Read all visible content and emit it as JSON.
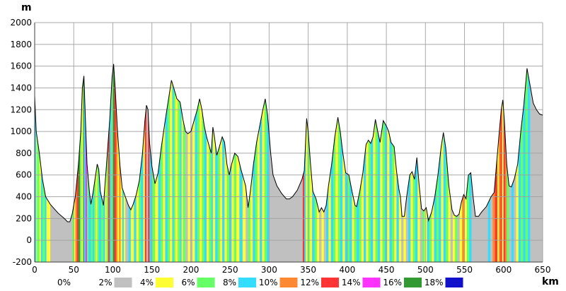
{
  "chart_data": {
    "type": "area",
    "title": "",
    "xlabel": "km",
    "ylabel": "m",
    "xlim": [
      0,
      650
    ],
    "ylim": [
      -200,
      2000
    ],
    "x_ticks": [
      0,
      50,
      100,
      150,
      200,
      250,
      300,
      350,
      400,
      450,
      500,
      550,
      600,
      650
    ],
    "y_ticks": [
      -200,
      0,
      200,
      400,
      600,
      800,
      1000,
      1200,
      1400,
      1600,
      1800,
      2000
    ],
    "grid": true,
    "legend_position": "bottom",
    "legend": [
      {
        "label": "0%",
        "color": "#ffffff"
      },
      {
        "label": "2%",
        "color": "#c0c0c0"
      },
      {
        "label": "4%",
        "color": "#ffff33"
      },
      {
        "label": "6%",
        "color": "#66ff66"
      },
      {
        "label": "8%",
        "color": "#33ddff"
      },
      {
        "label": "10%",
        "color": "#ff8833"
      },
      {
        "label": "12%",
        "color": "#ff3333"
      },
      {
        "label": "14%",
        "color": "#ff33ff"
      },
      {
        "label": "16%",
        "color": "#339933"
      },
      {
        "label": "18%",
        "color": "#1111cc"
      }
    ],
    "profile": [
      [
        0,
        1330
      ],
      [
        2,
        1000
      ],
      [
        6,
        800
      ],
      [
        10,
        560
      ],
      [
        14,
        400
      ],
      [
        20,
        330
      ],
      [
        30,
        250
      ],
      [
        38,
        200
      ],
      [
        42,
        170
      ],
      [
        45,
        170
      ],
      [
        48,
        240
      ],
      [
        52,
        400
      ],
      [
        56,
        700
      ],
      [
        59,
        1000
      ],
      [
        61,
        1400
      ],
      [
        63,
        1510
      ],
      [
        65,
        1100
      ],
      [
        67,
        700
      ],
      [
        70,
        450
      ],
      [
        72,
        330
      ],
      [
        75,
        450
      ],
      [
        78,
        600
      ],
      [
        80,
        700
      ],
      [
        82,
        650
      ],
      [
        84,
        450
      ],
      [
        88,
        320
      ],
      [
        92,
        700
      ],
      [
        96,
        1100
      ],
      [
        99,
        1500
      ],
      [
        101,
        1620
      ],
      [
        103,
        1400
      ],
      [
        106,
        1000
      ],
      [
        109,
        700
      ],
      [
        112,
        480
      ],
      [
        116,
        400
      ],
      [
        120,
        320
      ],
      [
        123,
        280
      ],
      [
        126,
        330
      ],
      [
        130,
        420
      ],
      [
        134,
        550
      ],
      [
        138,
        800
      ],
      [
        141,
        1100
      ],
      [
        143,
        1240
      ],
      [
        145,
        1200
      ],
      [
        147,
        900
      ],
      [
        150,
        680
      ],
      [
        154,
        520
      ],
      [
        158,
        620
      ],
      [
        162,
        850
      ],
      [
        167,
        1100
      ],
      [
        172,
        1330
      ],
      [
        175,
        1470
      ],
      [
        178,
        1400
      ],
      [
        182,
        1300
      ],
      [
        186,
        1270
      ],
      [
        190,
        1100
      ],
      [
        193,
        1000
      ],
      [
        196,
        980
      ],
      [
        200,
        1000
      ],
      [
        204,
        1100
      ],
      [
        208,
        1200
      ],
      [
        211,
        1300
      ],
      [
        214,
        1200
      ],
      [
        217,
        1050
      ],
      [
        220,
        950
      ],
      [
        224,
        850
      ],
      [
        226,
        800
      ],
      [
        228,
        1040
      ],
      [
        230,
        950
      ],
      [
        233,
        780
      ],
      [
        236,
        850
      ],
      [
        240,
        950
      ],
      [
        243,
        900
      ],
      [
        246,
        700
      ],
      [
        249,
        600
      ],
      [
        252,
        700
      ],
      [
        256,
        800
      ],
      [
        260,
        770
      ],
      [
        264,
        650
      ],
      [
        268,
        550
      ],
      [
        270,
        500
      ],
      [
        273,
        300
      ],
      [
        276,
        450
      ],
      [
        280,
        700
      ],
      [
        284,
        900
      ],
      [
        288,
        1050
      ],
      [
        292,
        1200
      ],
      [
        295,
        1300
      ],
      [
        298,
        1150
      ],
      [
        302,
        800
      ],
      [
        305,
        600
      ],
      [
        310,
        500
      ],
      [
        316,
        430
      ],
      [
        322,
        380
      ],
      [
        326,
        380
      ],
      [
        330,
        400
      ],
      [
        336,
        460
      ],
      [
        342,
        560
      ],
      [
        345,
        640
      ],
      [
        348,
        1120
      ],
      [
        350,
        1000
      ],
      [
        353,
        700
      ],
      [
        356,
        450
      ],
      [
        360,
        380
      ],
      [
        364,
        260
      ],
      [
        367,
        300
      ],
      [
        370,
        260
      ],
      [
        373,
        320
      ],
      [
        376,
        500
      ],
      [
        380,
        700
      ],
      [
        384,
        950
      ],
      [
        388,
        1130
      ],
      [
        391,
        1000
      ],
      [
        394,
        820
      ],
      [
        398,
        620
      ],
      [
        402,
        600
      ],
      [
        406,
        450
      ],
      [
        410,
        320
      ],
      [
        412,
        310
      ],
      [
        416,
        450
      ],
      [
        420,
        620
      ],
      [
        424,
        880
      ],
      [
        427,
        920
      ],
      [
        430,
        890
      ],
      [
        433,
        950
      ],
      [
        436,
        1110
      ],
      [
        439,
        1000
      ],
      [
        442,
        900
      ],
      [
        446,
        1100
      ],
      [
        450,
        1050
      ],
      [
        453,
        1000
      ],
      [
        456,
        900
      ],
      [
        460,
        860
      ],
      [
        463,
        640
      ],
      [
        466,
        470
      ],
      [
        468,
        400
      ],
      [
        470,
        220
      ],
      [
        473,
        220
      ],
      [
        476,
        400
      ],
      [
        480,
        600
      ],
      [
        483,
        630
      ],
      [
        486,
        560
      ],
      [
        489,
        760
      ],
      [
        492,
        500
      ],
      [
        495,
        290
      ],
      [
        498,
        270
      ],
      [
        501,
        300
      ],
      [
        504,
        180
      ],
      [
        508,
        260
      ],
      [
        512,
        400
      ],
      [
        516,
        600
      ],
      [
        520,
        850
      ],
      [
        523,
        990
      ],
      [
        526,
        850
      ],
      [
        530,
        500
      ],
      [
        534,
        280
      ],
      [
        537,
        230
      ],
      [
        540,
        220
      ],
      [
        543,
        240
      ],
      [
        546,
        350
      ],
      [
        549,
        420
      ],
      [
        552,
        380
      ],
      [
        555,
        600
      ],
      [
        558,
        620
      ],
      [
        561,
        400
      ],
      [
        564,
        220
      ],
      [
        568,
        220
      ],
      [
        572,
        260
      ],
      [
        578,
        310
      ],
      [
        584,
        400
      ],
      [
        588,
        440
      ],
      [
        591,
        700
      ],
      [
        594,
        950
      ],
      [
        597,
        1200
      ],
      [
        599,
        1290
      ],
      [
        601,
        1100
      ],
      [
        604,
        700
      ],
      [
        607,
        500
      ],
      [
        610,
        490
      ],
      [
        614,
        570
      ],
      [
        618,
        700
      ],
      [
        622,
        1000
      ],
      [
        626,
        1250
      ],
      [
        630,
        1580
      ],
      [
        634,
        1420
      ],
      [
        638,
        1260
      ],
      [
        642,
        1200
      ],
      [
        646,
        1160
      ],
      [
        650,
        1150
      ]
    ],
    "grade_segments": [
      [
        0,
        2,
        8
      ],
      [
        2,
        3,
        4
      ],
      [
        3,
        6,
        6
      ],
      [
        6,
        8,
        4
      ],
      [
        8,
        10,
        8
      ],
      [
        10,
        13,
        6
      ],
      [
        13,
        15,
        8
      ],
      [
        15,
        20,
        4
      ],
      [
        20,
        45,
        2
      ],
      [
        45,
        48,
        2
      ],
      [
        48,
        50,
        6
      ],
      [
        50,
        52,
        4
      ],
      [
        52,
        54,
        10
      ],
      [
        54,
        56,
        12
      ],
      [
        56,
        58,
        16
      ],
      [
        58,
        60,
        6
      ],
      [
        60,
        62,
        4
      ],
      [
        62,
        63,
        16
      ],
      [
        63,
        65,
        8
      ],
      [
        65,
        67,
        14
      ],
      [
        67,
        69,
        6
      ],
      [
        69,
        72,
        8
      ],
      [
        72,
        74,
        6
      ],
      [
        74,
        76,
        8
      ],
      [
        76,
        78,
        6
      ],
      [
        78,
        80,
        4
      ],
      [
        80,
        82,
        6
      ],
      [
        82,
        85,
        8
      ],
      [
        85,
        88,
        6
      ],
      [
        88,
        90,
        8
      ],
      [
        90,
        92,
        4
      ],
      [
        92,
        94,
        6
      ],
      [
        94,
        96,
        12
      ],
      [
        96,
        98,
        8
      ],
      [
        98,
        100,
        6
      ],
      [
        100,
        102,
        16
      ],
      [
        102,
        104,
        12
      ],
      [
        104,
        106,
        10
      ],
      [
        106,
        108,
        4
      ],
      [
        108,
        110,
        10
      ],
      [
        110,
        112,
        4
      ],
      [
        112,
        114,
        8
      ],
      [
        114,
        116,
        4
      ],
      [
        116,
        120,
        2
      ],
      [
        120,
        123,
        8
      ],
      [
        123,
        127,
        4
      ],
      [
        127,
        130,
        8
      ],
      [
        130,
        133,
        4
      ],
      [
        133,
        136,
        6
      ],
      [
        136,
        139,
        8
      ],
      [
        139,
        141,
        4
      ],
      [
        141,
        143,
        12
      ],
      [
        143,
        145,
        2
      ],
      [
        145,
        147,
        12
      ],
      [
        147,
        150,
        8
      ],
      [
        150,
        154,
        6
      ],
      [
        154,
        158,
        4
      ],
      [
        158,
        161,
        8
      ],
      [
        161,
        164,
        6
      ],
      [
        164,
        167,
        4
      ],
      [
        167,
        170,
        8
      ],
      [
        170,
        173,
        6
      ],
      [
        173,
        176,
        4
      ],
      [
        176,
        178,
        8
      ],
      [
        178,
        180,
        6
      ],
      [
        180,
        183,
        4
      ],
      [
        183,
        186,
        6
      ],
      [
        186,
        188,
        8
      ],
      [
        188,
        190,
        4
      ],
      [
        190,
        193,
        6
      ],
      [
        193,
        196,
        2
      ],
      [
        196,
        199,
        4
      ],
      [
        199,
        202,
        2
      ],
      [
        202,
        205,
        4
      ],
      [
        205,
        208,
        8
      ],
      [
        208,
        211,
        6
      ],
      [
        211,
        214,
        4
      ],
      [
        214,
        217,
        6
      ],
      [
        217,
        220,
        8
      ],
      [
        220,
        223,
        4
      ],
      [
        223,
        226,
        6
      ],
      [
        226,
        228,
        8
      ],
      [
        228,
        231,
        4
      ],
      [
        231,
        234,
        8
      ],
      [
        234,
        237,
        6
      ],
      [
        237,
        240,
        4
      ],
      [
        240,
        243,
        8
      ],
      [
        243,
        246,
        4
      ],
      [
        246,
        249,
        6
      ],
      [
        249,
        252,
        8
      ],
      [
        252,
        255,
        4
      ],
      [
        255,
        258,
        6
      ],
      [
        258,
        262,
        4
      ],
      [
        262,
        266,
        8
      ],
      [
        266,
        270,
        4
      ],
      [
        270,
        273,
        2
      ],
      [
        273,
        276,
        6
      ],
      [
        276,
        279,
        4
      ],
      [
        279,
        282,
        8
      ],
      [
        282,
        285,
        6
      ],
      [
        285,
        288,
        4
      ],
      [
        288,
        291,
        8
      ],
      [
        291,
        294,
        4
      ],
      [
        294,
        297,
        6
      ],
      [
        297,
        300,
        8
      ],
      [
        300,
        343,
        2
      ],
      [
        343,
        345,
        12
      ],
      [
        345,
        347,
        8
      ],
      [
        347,
        349,
        4
      ],
      [
        349,
        352,
        6
      ],
      [
        352,
        355,
        4
      ],
      [
        355,
        358,
        8
      ],
      [
        358,
        361,
        6
      ],
      [
        361,
        364,
        4
      ],
      [
        364,
        367,
        2
      ],
      [
        367,
        370,
        4
      ],
      [
        370,
        373,
        2
      ],
      [
        373,
        376,
        8
      ],
      [
        376,
        379,
        4
      ],
      [
        379,
        382,
        8
      ],
      [
        382,
        385,
        6
      ],
      [
        385,
        388,
        4
      ],
      [
        388,
        391,
        6
      ],
      [
        391,
        394,
        8
      ],
      [
        394,
        397,
        4
      ],
      [
        397,
        400,
        8
      ],
      [
        400,
        403,
        6
      ],
      [
        403,
        406,
        8
      ],
      [
        406,
        409,
        4
      ],
      [
        409,
        412,
        6
      ],
      [
        412,
        415,
        8
      ],
      [
        415,
        418,
        6
      ],
      [
        418,
        421,
        4
      ],
      [
        421,
        424,
        8
      ],
      [
        424,
        427,
        4
      ],
      [
        427,
        430,
        6
      ],
      [
        430,
        433,
        8
      ],
      [
        433,
        436,
        4
      ],
      [
        436,
        439,
        6
      ],
      [
        439,
        442,
        8
      ],
      [
        442,
        445,
        4
      ],
      [
        445,
        448,
        6
      ],
      [
        448,
        451,
        8
      ],
      [
        451,
        454,
        4
      ],
      [
        454,
        457,
        8
      ],
      [
        457,
        460,
        6
      ],
      [
        460,
        463,
        4
      ],
      [
        463,
        466,
        8
      ],
      [
        466,
        469,
        4
      ],
      [
        469,
        472,
        2
      ],
      [
        472,
        475,
        4
      ],
      [
        475,
        478,
        2
      ],
      [
        478,
        481,
        8
      ],
      [
        481,
        484,
        4
      ],
      [
        484,
        487,
        6
      ],
      [
        487,
        490,
        8
      ],
      [
        490,
        493,
        4
      ],
      [
        493,
        496,
        2
      ],
      [
        496,
        499,
        6
      ],
      [
        499,
        502,
        4
      ],
      [
        502,
        505,
        8
      ],
      [
        505,
        508,
        6
      ],
      [
        508,
        511,
        4
      ],
      [
        511,
        514,
        8
      ],
      [
        514,
        517,
        6
      ],
      [
        517,
        520,
        8
      ],
      [
        520,
        523,
        4
      ],
      [
        523,
        526,
        8
      ],
      [
        526,
        529,
        6
      ],
      [
        529,
        532,
        4
      ],
      [
        532,
        535,
        2
      ],
      [
        535,
        538,
        4
      ],
      [
        538,
        541,
        6
      ],
      [
        541,
        544,
        2
      ],
      [
        544,
        547,
        4
      ],
      [
        547,
        550,
        10
      ],
      [
        550,
        553,
        4
      ],
      [
        553,
        556,
        6
      ],
      [
        556,
        559,
        8
      ],
      [
        559,
        562,
        2
      ],
      [
        562,
        580,
        2
      ],
      [
        580,
        583,
        8
      ],
      [
        583,
        586,
        2
      ],
      [
        586,
        589,
        10
      ],
      [
        589,
        592,
        12
      ],
      [
        592,
        594,
        4
      ],
      [
        594,
        596,
        10
      ],
      [
        596,
        598,
        12
      ],
      [
        598,
        600,
        4
      ],
      [
        600,
        602,
        12
      ],
      [
        602,
        604,
        10
      ],
      [
        604,
        607,
        6
      ],
      [
        607,
        610,
        2
      ],
      [
        610,
        613,
        8
      ],
      [
        613,
        616,
        2
      ],
      [
        616,
        619,
        4
      ],
      [
        619,
        622,
        8
      ],
      [
        622,
        625,
        6
      ],
      [
        625,
        628,
        8
      ],
      [
        628,
        631,
        6
      ],
      [
        631,
        634,
        8
      ],
      [
        634,
        638,
        2
      ],
      [
        638,
        650,
        2
      ]
    ]
  }
}
